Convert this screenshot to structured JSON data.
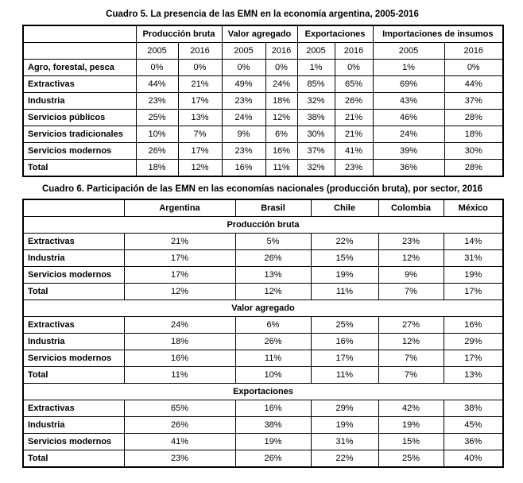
{
  "cuadro5": {
    "title": "Cuadro 5. La presencia de las EMN en la economía argentina, 2005-2016",
    "group_headers": [
      {
        "label": "",
        "span": 1
      },
      {
        "label": "Producción bruta",
        "span": 2
      },
      {
        "label": "Valor agregado",
        "span": 2
      },
      {
        "label": "Exportaciones",
        "span": 2
      },
      {
        "label": "Importaciones de insumos",
        "span": 2
      }
    ],
    "year_headers": [
      "",
      "2005",
      "2016",
      "2005",
      "2016",
      "2005",
      "2016",
      "2005",
      "2016"
    ],
    "rows": [
      {
        "label": "Agro, forestal, pesca",
        "values": [
          "0%",
          "0%",
          "0%",
          "0%",
          "1%",
          "0%",
          "1%",
          "0%"
        ]
      },
      {
        "label": "Extractivas",
        "values": [
          "44%",
          "21%",
          "49%",
          "24%",
          "85%",
          "65%",
          "69%",
          "44%"
        ]
      },
      {
        "label": "Industria",
        "values": [
          "23%",
          "17%",
          "23%",
          "18%",
          "32%",
          "26%",
          "43%",
          "37%"
        ]
      },
      {
        "label": "Servicios públicos",
        "values": [
          "25%",
          "13%",
          "24%",
          "12%",
          "38%",
          "21%",
          "46%",
          "28%"
        ]
      },
      {
        "label": "Servicios tradicionales",
        "values": [
          "10%",
          "7%",
          "9%",
          "6%",
          "30%",
          "21%",
          "24%",
          "18%"
        ]
      },
      {
        "label": "Servicios modernos",
        "values": [
          "26%",
          "17%",
          "23%",
          "16%",
          "37%",
          "41%",
          "39%",
          "30%"
        ]
      },
      {
        "label": "Total",
        "values": [
          "18%",
          "12%",
          "16%",
          "11%",
          "32%",
          "23%",
          "36%",
          "28%"
        ]
      }
    ]
  },
  "cuadro6": {
    "title": "Cuadro 6. Participación de las EMN en las economías nacionales (producción bruta), por sector, 2016",
    "country_headers": [
      "",
      "Argentina",
      "Brasil",
      "Chile",
      "Colombia",
      "México"
    ],
    "sections": [
      {
        "header": "Producción bruta",
        "rows": [
          {
            "label": "Extractivas",
            "values": [
              "21%",
              "5%",
              "22%",
              "23%",
              "14%"
            ]
          },
          {
            "label": "Industria",
            "values": [
              "17%",
              "26%",
              "15%",
              "12%",
              "31%"
            ]
          },
          {
            "label": "Servicios modernos",
            "values": [
              "17%",
              "13%",
              "19%",
              "9%",
              "19%"
            ]
          },
          {
            "label": "Total",
            "values": [
              "12%",
              "12%",
              "11%",
              "7%",
              "17%"
            ]
          }
        ]
      },
      {
        "header": "Valor agregado",
        "rows": [
          {
            "label": "Extractivas",
            "values": [
              "24%",
              "6%",
              "25%",
              "27%",
              "16%"
            ]
          },
          {
            "label": "Industria",
            "values": [
              "18%",
              "26%",
              "16%",
              "12%",
              "29%"
            ]
          },
          {
            "label": "Servicios modernos",
            "values": [
              "16%",
              "11%",
              "17%",
              "7%",
              "17%"
            ]
          },
          {
            "label": "Total",
            "values": [
              "11%",
              "10%",
              "11%",
              "7%",
              "13%"
            ]
          }
        ]
      },
      {
        "header": "Exportaciones",
        "rows": [
          {
            "label": "Extractivas",
            "values": [
              "65%",
              "16%",
              "29%",
              "42%",
              "38%"
            ]
          },
          {
            "label": "Industria",
            "values": [
              "26%",
              "38%",
              "19%",
              "19%",
              "45%"
            ]
          },
          {
            "label": "Servicios modernos",
            "values": [
              "41%",
              "19%",
              "31%",
              "15%",
              "36%"
            ]
          },
          {
            "label": "Total",
            "values": [
              "23%",
              "26%",
              "22%",
              "25%",
              "40%"
            ]
          }
        ]
      }
    ]
  },
  "colors": {
    "text": "#000000",
    "border": "#000000",
    "background": "#ffffff"
  }
}
